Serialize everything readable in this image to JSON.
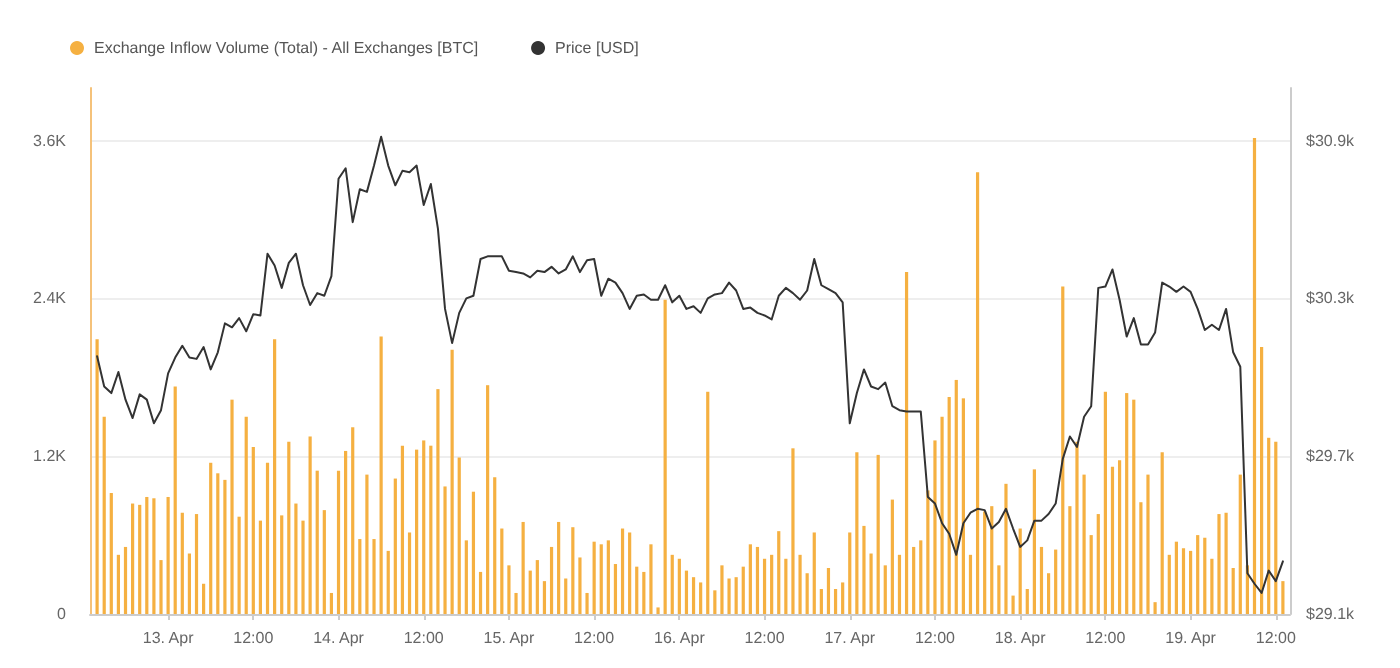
{
  "chart_data": {
    "type": "bar",
    "x": [
      "--04-12T14:00",
      "--04-12T15:00",
      "--04-12T16:00",
      "--04-12T17:00",
      "--04-12T18:00",
      "--04-12T19:00",
      "--04-12T20:00",
      "--04-12T21:00",
      "--04-12T22:00",
      "--04-12T23:00",
      "--04-13T00:00",
      "--04-13T01:00",
      "--04-13T02:00",
      "--04-13T03:00",
      "--04-13T04:00",
      "--04-13T05:00",
      "--04-13T06:00",
      "--04-13T07:00",
      "--04-13T08:00",
      "--04-13T09:00",
      "--04-13T10:00",
      "--04-13T11:00",
      "--04-13T12:00",
      "--04-13T13:00",
      "--04-13T14:00",
      "--04-13T15:00",
      "--04-13T16:00",
      "--04-13T17:00",
      "--04-13T18:00",
      "--04-13T19:00",
      "--04-13T20:00",
      "--04-13T21:00",
      "--04-13T22:00",
      "--04-13T23:00",
      "--04-14T00:00",
      "--04-14T01:00",
      "--04-14T02:00",
      "--04-14T03:00",
      "--04-14T04:00",
      "--04-14T05:00",
      "--04-14T06:00",
      "--04-14T07:00",
      "--04-14T08:00",
      "--04-14T09:00",
      "--04-14T10:00",
      "--04-14T11:00",
      "--04-14T12:00",
      "--04-14T13:00",
      "--04-14T14:00",
      "--04-14T15:00",
      "--04-14T16:00",
      "--04-14T17:00",
      "--04-14T18:00",
      "--04-14T19:00",
      "--04-14T20:00",
      "--04-14T21:00",
      "--04-14T22:00",
      "--04-14T23:00",
      "--04-15T00:00",
      "--04-15T01:00",
      "--04-15T02:00",
      "--04-15T03:00",
      "--04-15T04:00",
      "--04-15T05:00",
      "--04-15T06:00",
      "--04-15T07:00",
      "--04-15T08:00",
      "--04-15T09:00",
      "--04-15T10:00",
      "--04-15T11:00",
      "--04-15T12:00",
      "--04-15T13:00",
      "--04-15T14:00",
      "--04-15T15:00",
      "--04-15T16:00",
      "--04-15T17:00",
      "--04-15T18:00",
      "--04-15T19:00",
      "--04-15T20:00",
      "--04-15T21:00",
      "--04-15T22:00",
      "--04-15T23:00",
      "--04-16T00:00",
      "--04-16T01:00",
      "--04-16T02:00",
      "--04-16T03:00",
      "--04-16T04:00",
      "--04-16T05:00",
      "--04-16T06:00",
      "--04-16T07:00",
      "--04-16T08:00",
      "--04-16T09:00",
      "--04-16T10:00",
      "--04-16T11:00",
      "--04-16T12:00",
      "--04-16T13:00",
      "--04-16T14:00",
      "--04-16T15:00",
      "--04-16T16:00",
      "--04-16T17:00",
      "--04-16T18:00",
      "--04-16T19:00",
      "--04-16T20:00",
      "--04-16T21:00",
      "--04-16T22:00",
      "--04-16T23:00",
      "--04-17T00:00",
      "--04-17T01:00",
      "--04-17T02:00",
      "--04-17T03:00",
      "--04-17T04:00",
      "--04-17T05:00",
      "--04-17T06:00",
      "--04-17T07:00",
      "--04-17T08:00",
      "--04-17T09:00",
      "--04-17T10:00",
      "--04-17T11:00",
      "--04-17T12:00",
      "--04-17T13:00",
      "--04-17T14:00",
      "--04-17T15:00",
      "--04-17T16:00",
      "--04-17T17:00",
      "--04-17T18:00",
      "--04-17T19:00",
      "--04-17T20:00",
      "--04-17T21:00",
      "--04-17T22:00",
      "--04-17T23:00",
      "--04-18T00:00",
      "--04-18T01:00",
      "--04-18T02:00",
      "--04-18T03:00",
      "--04-18T04:00",
      "--04-18T05:00",
      "--04-18T06:00",
      "--04-18T07:00",
      "--04-18T08:00",
      "--04-18T09:00",
      "--04-18T10:00",
      "--04-18T11:00",
      "--04-18T12:00",
      "--04-18T13:00",
      "--04-18T14:00",
      "--04-18T15:00",
      "--04-18T16:00",
      "--04-18T17:00",
      "--04-18T18:00",
      "--04-18T19:00",
      "--04-18T20:00",
      "--04-18T21:00",
      "--04-18T22:00",
      "--04-18T23:00",
      "--04-19T00:00",
      "--04-19T01:00",
      "--04-19T02:00",
      "--04-19T03:00",
      "--04-19T04:00",
      "--04-19T05:00",
      "--04-19T06:00",
      "--04-19T07:00",
      "--04-19T08:00",
      "--04-19T09:00",
      "--04-19T10:00",
      "--04-19T11:00",
      "--04-19T12:00",
      "--04-19T13:00"
    ],
    "series": [
      {
        "name": "Exchange Inflow Volume (Total) - All Exchanges [BTC]",
        "color": "#f5b041",
        "values": [
          2090,
          1500,
          920,
          450,
          510,
          840,
          830,
          890,
          880,
          410,
          890,
          1730,
          770,
          460,
          760,
          230,
          1150,
          1070,
          1020,
          1630,
          740,
          1500,
          1270,
          710,
          1150,
          2090,
          750,
          1310,
          840,
          710,
          1350,
          1090,
          790,
          160,
          1090,
          1240,
          1420,
          570,
          1060,
          570,
          2110,
          480,
          1030,
          1280,
          620,
          1250,
          1320,
          1280,
          1710,
          970,
          2010,
          1190,
          560,
          930,
          320,
          1740,
          1040,
          650,
          370,
          160,
          700,
          330,
          410,
          250,
          510,
          700,
          270,
          660,
          430,
          160,
          550,
          530,
          560,
          380,
          650,
          620,
          360,
          320,
          530,
          50,
          2390,
          450,
          420,
          330,
          280,
          240,
          1690,
          180,
          370,
          270,
          280,
          360,
          530,
          510,
          420,
          450,
          630,
          420,
          1260,
          450,
          310,
          620,
          190,
          350,
          190,
          240,
          620,
          1230,
          670,
          460,
          1210,
          370,
          870,
          450,
          2600,
          510,
          560,
          940,
          1320,
          1500,
          1650,
          1780,
          1640,
          450,
          3360,
          780,
          820,
          370,
          990,
          140,
          650,
          190,
          1100,
          510,
          310,
          490,
          2490,
          820,
          1310,
          1060,
          600,
          760,
          1690,
          1120,
          1170,
          1680,
          1630,
          850,
          1060,
          90,
          1230,
          450,
          550,
          500,
          480,
          600,
          580,
          420,
          760,
          770,
          350,
          1060,
          370,
          3620,
          2030,
          1340,
          1310,
          250
        ]
      },
      {
        "name": "Price [USD]",
        "type": "line",
        "axis": "y2",
        "color": "#333333",
        "values": [
          30080,
          29965,
          29940,
          30020,
          29915,
          29845,
          29935,
          29915,
          29825,
          29875,
          30015,
          30075,
          30120,
          30075,
          30070,
          30115,
          30030,
          30095,
          30205,
          30190,
          30225,
          30175,
          30240,
          30235,
          30470,
          30425,
          30340,
          30435,
          30470,
          30350,
          30275,
          30320,
          30310,
          30385,
          30755,
          30795,
          30590,
          30715,
          30705,
          30805,
          30915,
          30805,
          30730,
          30785,
          30780,
          30805,
          30655,
          30735,
          30565,
          30260,
          30130,
          30245,
          30300,
          30310,
          30450,
          30460,
          30460,
          30460,
          30405,
          30400,
          30395,
          30380,
          30405,
          30400,
          30420,
          30395,
          30410,
          30460,
          30400,
          30445,
          30450,
          30310,
          30375,
          30360,
          30320,
          30260,
          30310,
          30315,
          30295,
          30295,
          30350,
          30285,
          30310,
          30260,
          30270,
          30245,
          30300,
          30315,
          30320,
          30360,
          30330,
          30260,
          30265,
          30245,
          30235,
          30220,
          30310,
          30340,
          30320,
          30295,
          30330,
          30450,
          30350,
          30335,
          30320,
          30285,
          29825,
          29940,
          30030,
          29965,
          29955,
          29980,
          29890,
          29875,
          29870,
          29870,
          29870,
          29545,
          29520,
          29445,
          29405,
          29325,
          29445,
          29485,
          29500,
          29495,
          29425,
          29450,
          29500,
          29425,
          29355,
          29380,
          29455,
          29455,
          29480,
          29520,
          29690,
          29775,
          29735,
          29850,
          29890,
          30340,
          30345,
          30410,
          30295,
          30155,
          30225,
          30125,
          30125,
          30170,
          30360,
          30345,
          30325,
          30345,
          30325,
          30260,
          30180,
          30200,
          30180,
          30260,
          30095,
          30040,
          29255,
          29215,
          29180,
          29265,
          29225,
          29300
        ]
      }
    ],
    "xlim": [
      "--04-12T13:00",
      "--04-19T14:00"
    ],
    "xticks": [
      {
        "value": "--04-13",
        "label": "13. Apr"
      },
      {
        "value": "--04-13T12:00",
        "label": "12:00"
      },
      {
        "value": "--04-14",
        "label": "14. Apr"
      },
      {
        "value": "--04-14T12:00",
        "label": "12:00"
      },
      {
        "value": "--04-15",
        "label": "15. Apr"
      },
      {
        "value": "--04-15T12:00",
        "label": "12:00"
      },
      {
        "value": "--04-16",
        "label": "16. Apr"
      },
      {
        "value": "--04-16T12:00",
        "label": "12:00"
      },
      {
        "value": "--04-17",
        "label": "17. Apr"
      },
      {
        "value": "--04-17T12:00",
        "label": "12:00"
      },
      {
        "value": "--04-18",
        "label": "18. Apr"
      },
      {
        "value": "--04-18T12:00",
        "label": "12:00"
      },
      {
        "value": "--04-19",
        "label": "19. Apr"
      },
      {
        "value": "--04-19T12:00",
        "label": "12:00"
      }
    ],
    "ylim": [
      0,
      4000
    ],
    "yticks": [
      0,
      {
        "value": 1200,
        "label": "1.2K"
      },
      {
        "value": 2400,
        "label": "2.4K"
      },
      {
        "value": 3600,
        "label": "3.6K"
      }
    ],
    "y2lim": [
      29100,
      31100
    ],
    "y2ticks": [
      {
        "value": 29100,
        "label": "$29.1k"
      },
      {
        "value": 29700,
        "label": "$29.7k"
      },
      {
        "value": 30300,
        "label": "$30.3k"
      },
      {
        "value": 30900,
        "label": "$30.9k"
      }
    ],
    "grid": "y",
    "legend": "top left",
    "marker": "none",
    "line_style": "solid"
  }
}
